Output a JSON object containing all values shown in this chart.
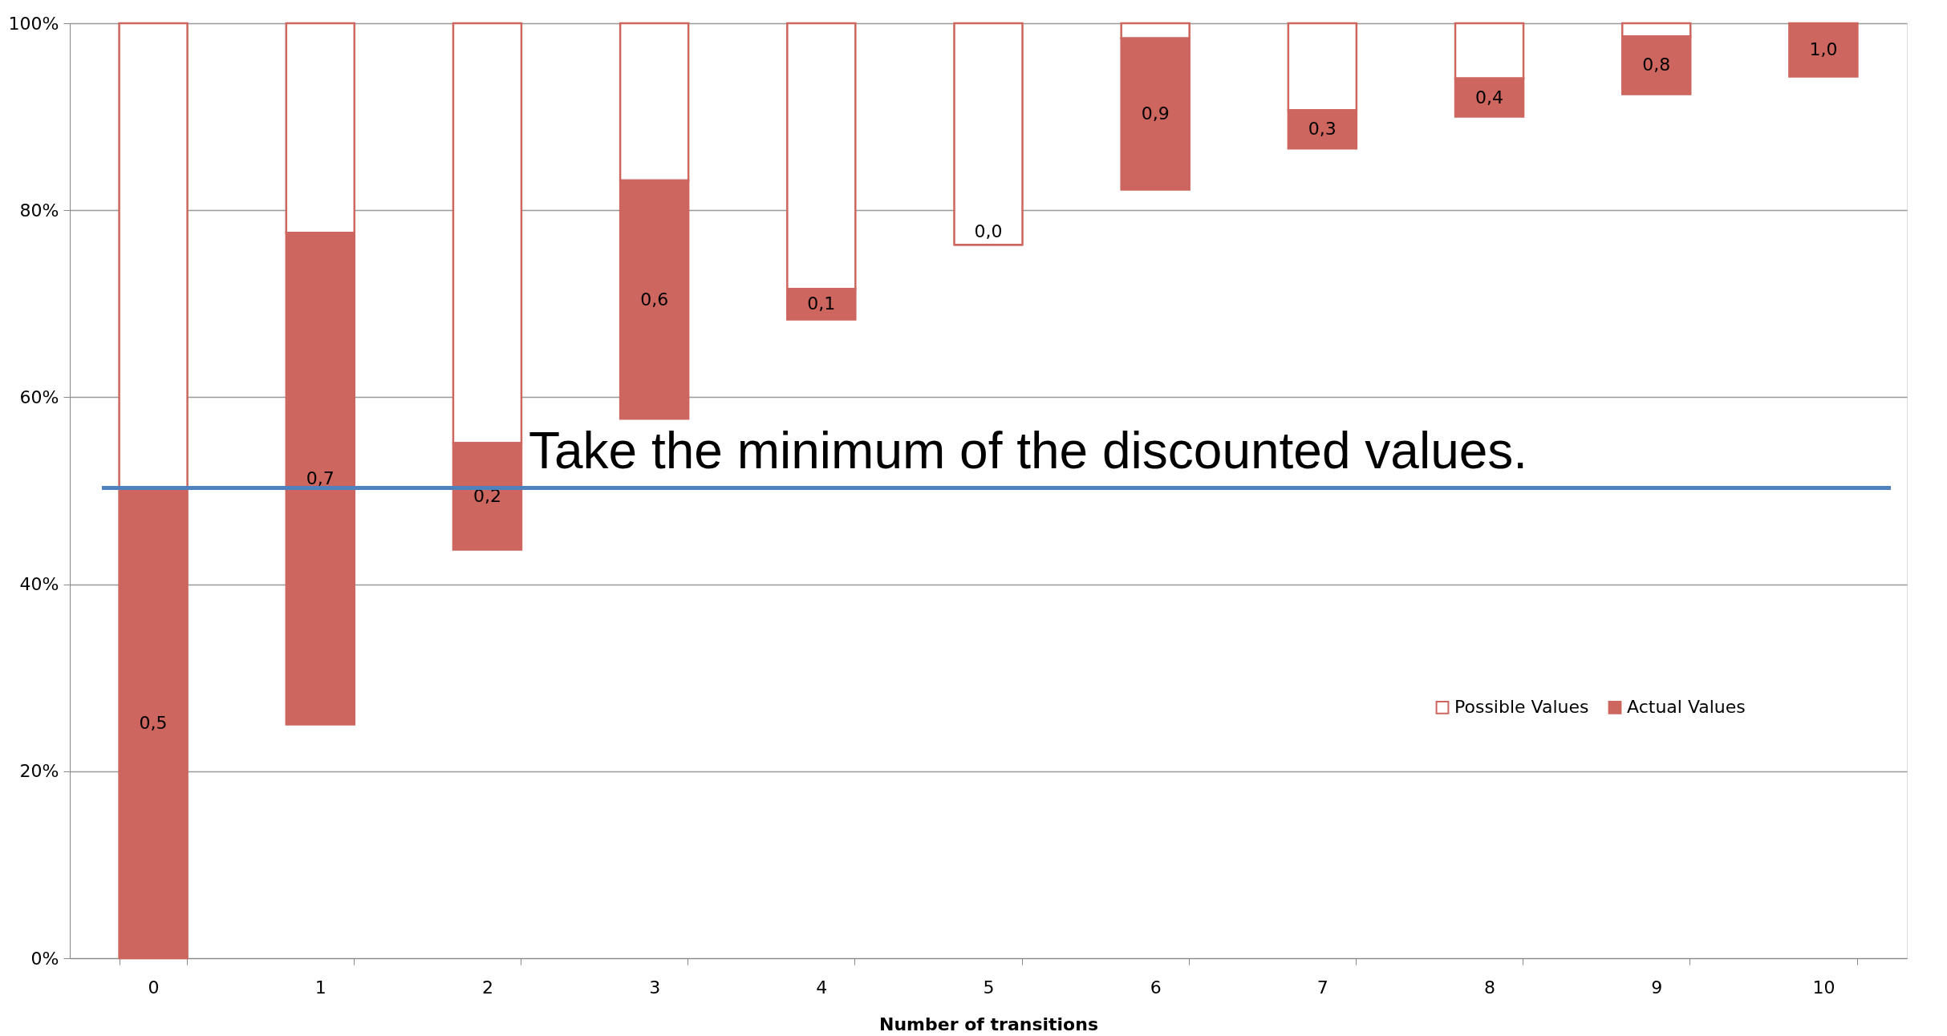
{
  "chart_data": {
    "type": "bar",
    "xlabel": "Number of transitions",
    "categories": [
      "0",
      "1",
      "2",
      "3",
      "4",
      "5",
      "6",
      "7",
      "8",
      "9",
      "10"
    ],
    "series": [
      {
        "name": "Possible Values",
        "color": "#cd665f",
        "base": [
          50.3,
          77.6,
          55.1,
          83.2,
          71.6,
          76.3,
          98.4,
          90.7,
          94.1,
          98.6,
          null
        ],
        "values": [
          49.7,
          22.4,
          44.9,
          16.8,
          28.4,
          23.7,
          1.6,
          9.3,
          5.9,
          1.4,
          null
        ]
      },
      {
        "name": "Actual Values",
        "color": "#cd665f",
        "base": [
          0,
          25.0,
          43.7,
          57.7,
          68.3,
          76.3,
          82.2,
          86.6,
          90.0,
          92.4,
          94.3
        ],
        "values": [
          50.3,
          52.6,
          11.4,
          25.5,
          3.3,
          0,
          16.2,
          4.1,
          4.1,
          6.2,
          5.7
        ]
      }
    ],
    "annotations": [
      "0,5",
      "0,7",
      "0,2",
      "0,6",
      "0,1",
      "0,0",
      "0,9",
      "0,3",
      "0,4",
      "0,8",
      "1,0"
    ],
    "ylim": [
      0,
      100
    ],
    "yticks": [
      {
        "value": 0,
        "label": "0%"
      },
      {
        "value": 20,
        "label": "20%"
      },
      {
        "value": 40,
        "label": "40%"
      },
      {
        "value": 60,
        "label": "60%"
      },
      {
        "value": 80,
        "label": "80%"
      },
      {
        "value": 100,
        "label": "100%"
      }
    ],
    "ref_lines": [
      {
        "axis": "y",
        "value": 50.3,
        "label": "Take the minimum of the discounted values.",
        "color": "#4f81bd"
      }
    ],
    "grid": "y",
    "legend": "right"
  }
}
